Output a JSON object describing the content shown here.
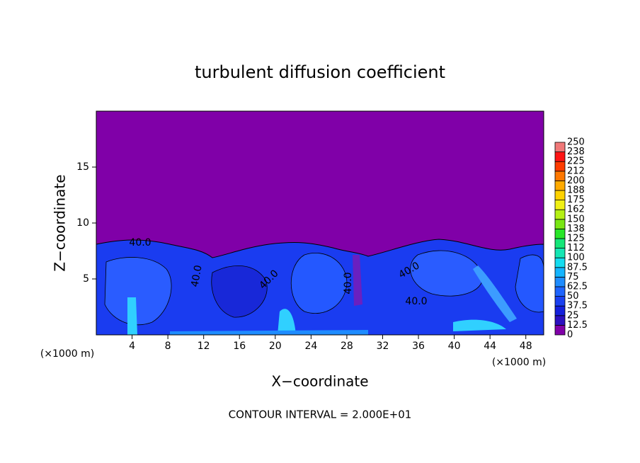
{
  "chart_data": {
    "type": "contour",
    "title": "turbulent diffusion coefficient",
    "xlabel": "X−coordinate",
    "ylabel": "Z−coordinate",
    "x_unit": "(×1000 m)",
    "y_unit": "(×1000 m)",
    "footer": "CONTOUR INTERVAL = 2.000E+01",
    "xlim": [
      0,
      50
    ],
    "xticks": [
      4,
      8,
      12,
      16,
      20,
      24,
      28,
      32,
      36,
      40,
      44,
      48
    ],
    "ylim": [
      0,
      20
    ],
    "yticks": [
      5,
      10,
      15
    ],
    "contour_labels": [
      "40.0",
      "40.0",
      "40.0",
      "40.0",
      "40.0",
      "40.0"
    ],
    "colorbar": {
      "ticks": [
        0,
        12.5,
        25,
        37.5,
        50,
        62.5,
        75,
        87.5,
        100,
        {
          "value": 112.5,
          "label": "112"
        },
        125,
        {
          "value": 137.5,
          "label": "138"
        },
        150,
        {
          "value": 162.5,
          "label": "162"
        },
        175,
        {
          "value": 187.5,
          "label": "188"
        },
        200,
        {
          "value": 212.5,
          "label": "212"
        },
        225,
        {
          "value": 237.5,
          "label": "238"
        },
        250
      ],
      "colors": [
        "#8000a8",
        "#2c10c0",
        "#1420dc",
        "#1a40f0",
        "#1e64ff",
        "#1e8cff",
        "#14b4ff",
        "#14dcf0",
        "#14e6b4",
        "#14e678",
        "#28e628",
        "#78e614",
        "#b4f014",
        "#f0f014",
        "#ffd200",
        "#ffaa00",
        "#ff7800",
        "#ff3c00",
        "#ff1414",
        "#f07878"
      ]
    }
  }
}
